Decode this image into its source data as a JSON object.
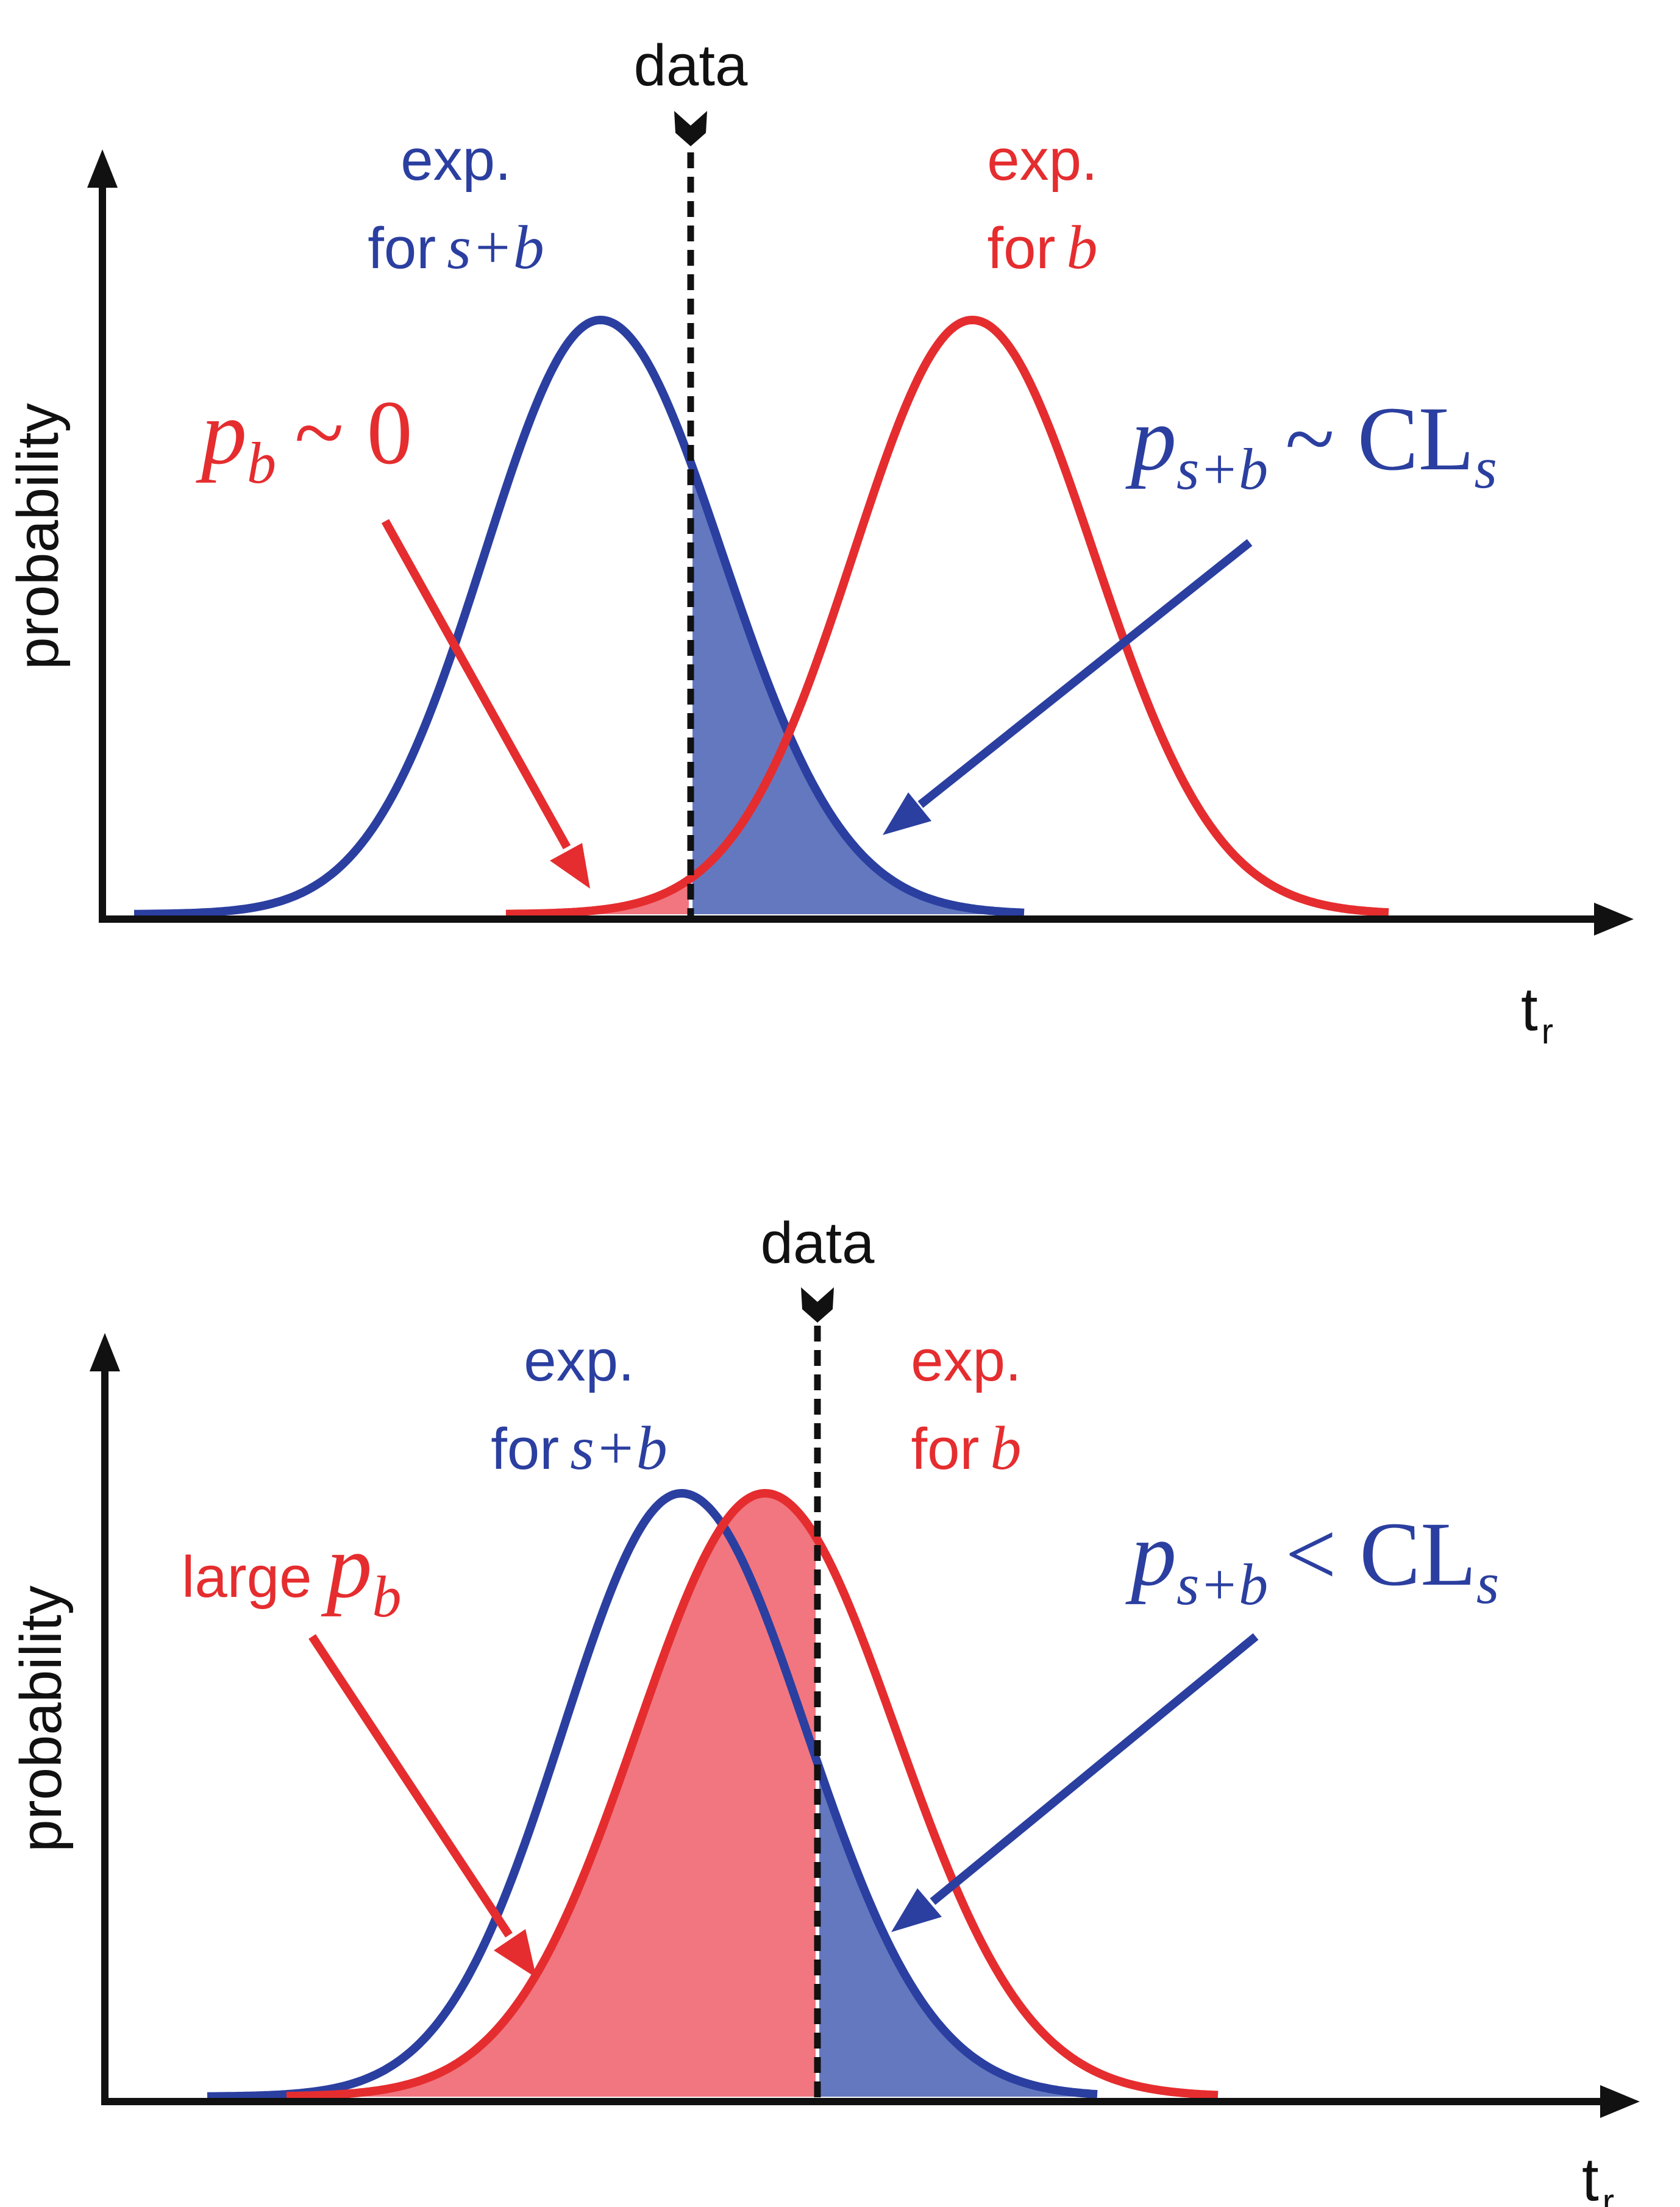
{
  "colors": {
    "blue": "#2b3fa0",
    "red": "#e52d2f",
    "blue_fill": "#6478bf",
    "red_fill": "#f17680",
    "axis": "#111111"
  },
  "icons": {
    "data_marker": "chevron-down-icon",
    "axis_arrow": "arrow-head-icon"
  },
  "panels": [
    {
      "ylabel": "probability",
      "xlabel": {
        "main": "t",
        "sub": "r"
      },
      "data_label": "data",
      "blue_curve_label": {
        "line1": "exp.",
        "line2_prefix": "for",
        "line2_var": "s+b"
      },
      "red_curve_label": {
        "line1": "exp.",
        "line2_prefix": "for",
        "line2_var": "b"
      },
      "red_annotation": {
        "prefix": "",
        "var": "p",
        "sub": "b",
        "rest": "~ 0"
      },
      "blue_annotation": {
        "var": "p",
        "sub": "s+b",
        "rest": "~ CL",
        "rest_sub": "s"
      }
    },
    {
      "ylabel": "probability",
      "xlabel": {
        "main": "t",
        "sub": "r"
      },
      "data_label": "data",
      "blue_curve_label": {
        "line1": "exp.",
        "line2_prefix": "for",
        "line2_var": "s+b"
      },
      "red_curve_label": {
        "line1": "exp.",
        "line2_prefix": "for",
        "line2_var": "b"
      },
      "red_annotation": {
        "prefix": "large",
        "var": "p",
        "sub": "b",
        "rest": ""
      },
      "blue_annotation": {
        "var": "p",
        "sub": "s+b",
        "rest": "< CL",
        "rest_sub": "s"
      }
    }
  ]
}
